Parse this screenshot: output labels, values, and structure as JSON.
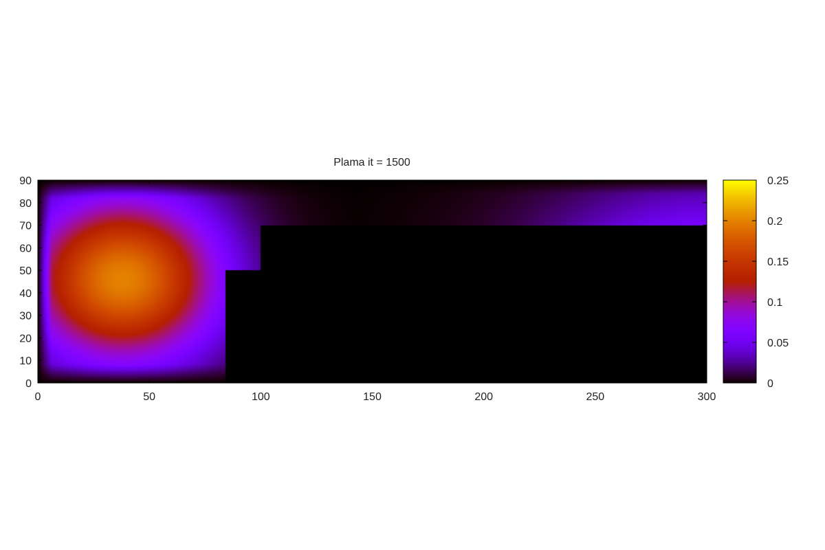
{
  "chart_data": {
    "type": "heatmap",
    "title": "Plama it = 1500",
    "xlabel": "",
    "ylabel": "",
    "xlim": [
      0,
      300
    ],
    "ylim": [
      0,
      90
    ],
    "x_ticks": [
      0,
      50,
      100,
      150,
      200,
      250,
      300
    ],
    "y_ticks": [
      0,
      10,
      20,
      30,
      40,
      50,
      60,
      70,
      80,
      90
    ],
    "colorbar": {
      "range": [
        0,
        0.25
      ],
      "ticks": [
        0,
        0.05,
        0.1,
        0.15,
        0.2,
        0.25
      ],
      "tick_labels": [
        "0",
        "0.05",
        "0.1",
        "0.15",
        "0.2",
        "0.25"
      ],
      "palette": "gnuplot",
      "placement": "right"
    },
    "grid": false,
    "field": {
      "hotspot": {
        "x": 38,
        "y": 46,
        "peak": 0.2,
        "radius_x": 32,
        "radius_y": 27
      },
      "obstacle": [
        {
          "x_from": 84,
          "x_to": 300,
          "y_from": 0,
          "y_to": 50
        },
        {
          "x_from": 100,
          "x_to": 300,
          "y_from": 50,
          "y_to": 70
        }
      ],
      "right_boundary": {
        "x": 300,
        "y": 45,
        "peak": 0.08
      }
    }
  }
}
